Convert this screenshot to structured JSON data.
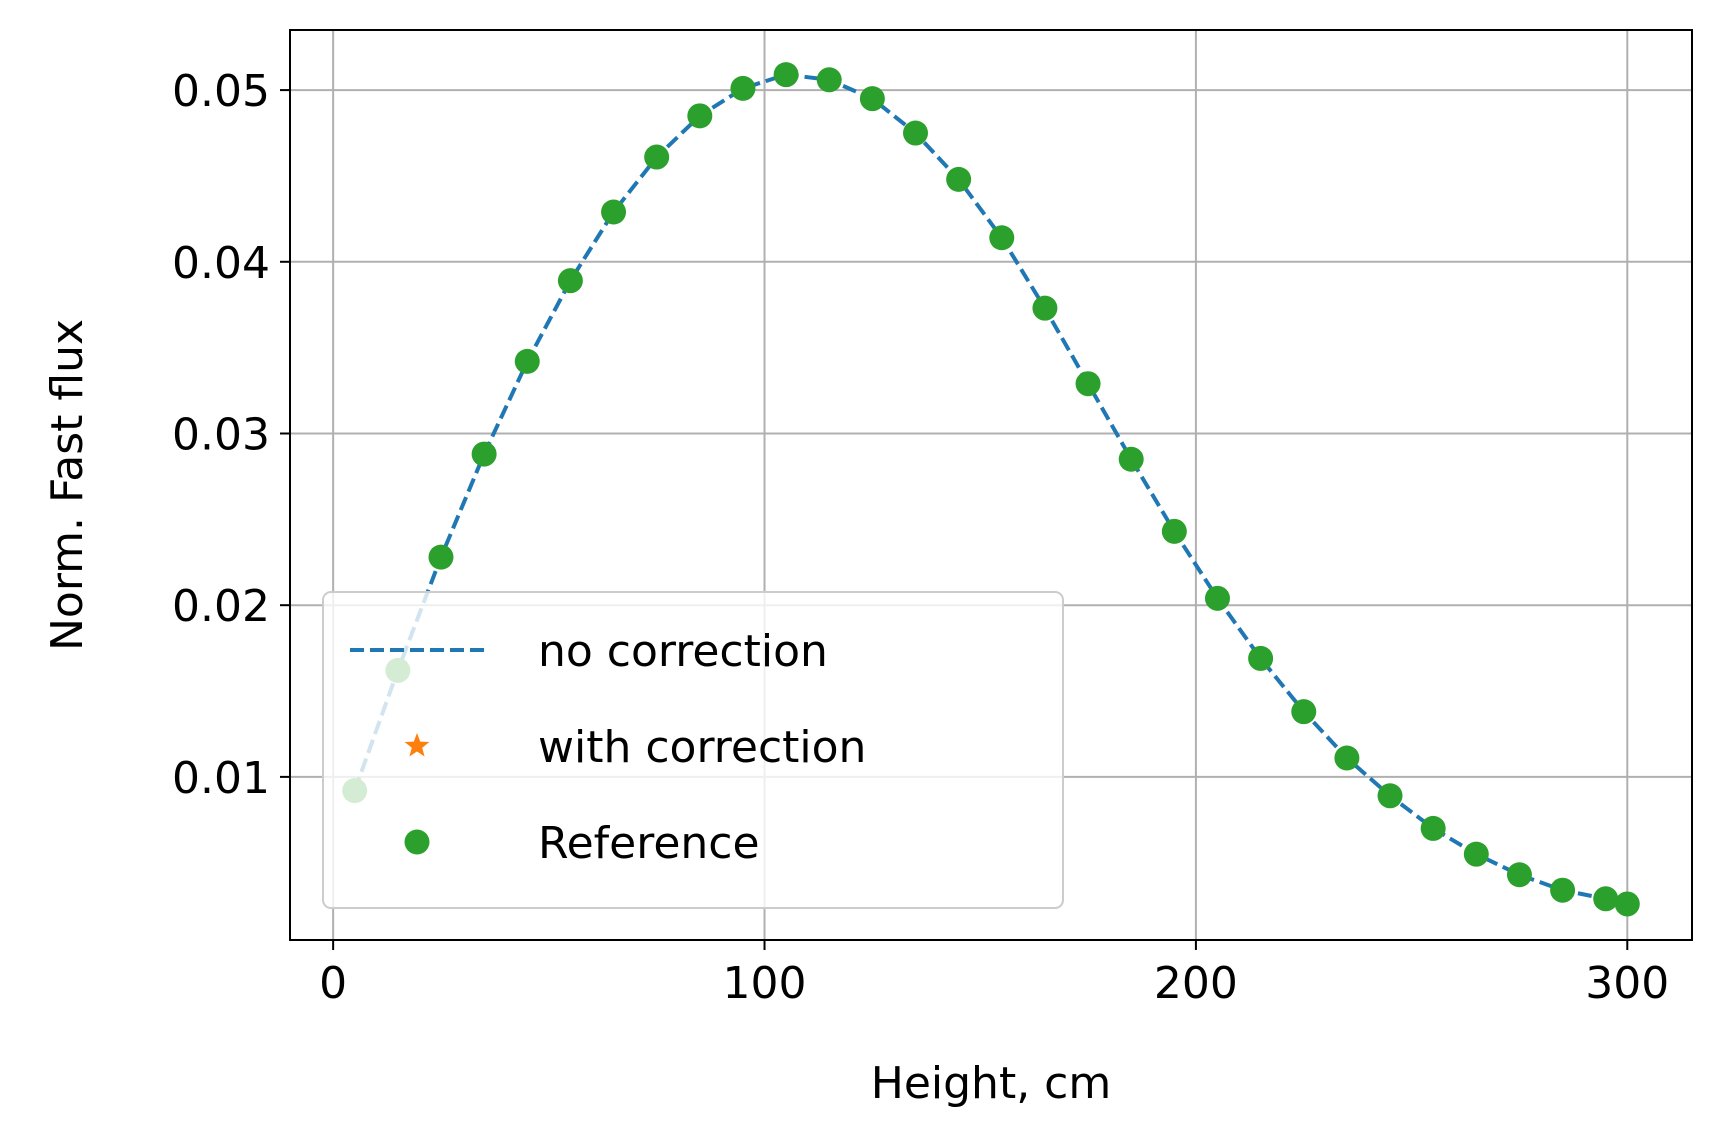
{
  "chart_data": {
    "type": "line",
    "xlabel": "Height, cm",
    "ylabel": "Norm. Fast flux",
    "xlim": [
      -10,
      315
    ],
    "ylim": [
      0.0005,
      0.0535
    ],
    "xticks": [
      0,
      100,
      200,
      300
    ],
    "yticks": [
      0.01,
      0.02,
      0.03,
      0.04,
      0.05
    ],
    "xtick_labels": [
      "0",
      "100",
      "200",
      "300"
    ],
    "ytick_labels": [
      "0.01",
      "0.02",
      "0.03",
      "0.04",
      "0.05"
    ],
    "grid": true,
    "legend_position": "lower-left",
    "series": [
      {
        "name": "no correction",
        "style": "dashed-line",
        "color": "#1f77b4",
        "x": [
          5,
          15,
          25,
          35,
          45,
          55,
          65,
          75,
          85,
          95,
          105,
          115,
          125,
          135,
          145,
          155,
          165,
          175,
          185,
          195,
          205,
          215,
          225,
          235,
          245,
          255,
          265,
          275,
          285,
          295,
          300
        ],
        "y": [
          0.0092,
          0.0162,
          0.0228,
          0.0288,
          0.0342,
          0.0389,
          0.0429,
          0.0461,
          0.0485,
          0.0501,
          0.0509,
          0.0506,
          0.0495,
          0.0475,
          0.0448,
          0.0414,
          0.0373,
          0.0329,
          0.0285,
          0.0243,
          0.0204,
          0.0169,
          0.0138,
          0.0111,
          0.0089,
          0.007,
          0.0055,
          0.0043,
          0.0034,
          0.0029,
          0.0026
        ]
      },
      {
        "name": "with correction",
        "style": "star-marker",
        "color": "#ff7f0e",
        "x": [],
        "y": []
      },
      {
        "name": "Reference",
        "style": "circle-marker",
        "color": "#2ca02c",
        "x": [
          5,
          15,
          25,
          35,
          45,
          55,
          65,
          75,
          85,
          95,
          105,
          115,
          125,
          135,
          145,
          155,
          165,
          175,
          185,
          195,
          205,
          215,
          225,
          235,
          245,
          255,
          265,
          275,
          285,
          295,
          300
        ],
        "y": [
          0.0092,
          0.0162,
          0.0228,
          0.0288,
          0.0342,
          0.0389,
          0.0429,
          0.0461,
          0.0485,
          0.0501,
          0.0509,
          0.0506,
          0.0495,
          0.0475,
          0.0448,
          0.0414,
          0.0373,
          0.0329,
          0.0285,
          0.0243,
          0.0204,
          0.0169,
          0.0138,
          0.0111,
          0.0089,
          0.007,
          0.0055,
          0.0043,
          0.0034,
          0.0029,
          0.0026
        ]
      }
    ]
  }
}
